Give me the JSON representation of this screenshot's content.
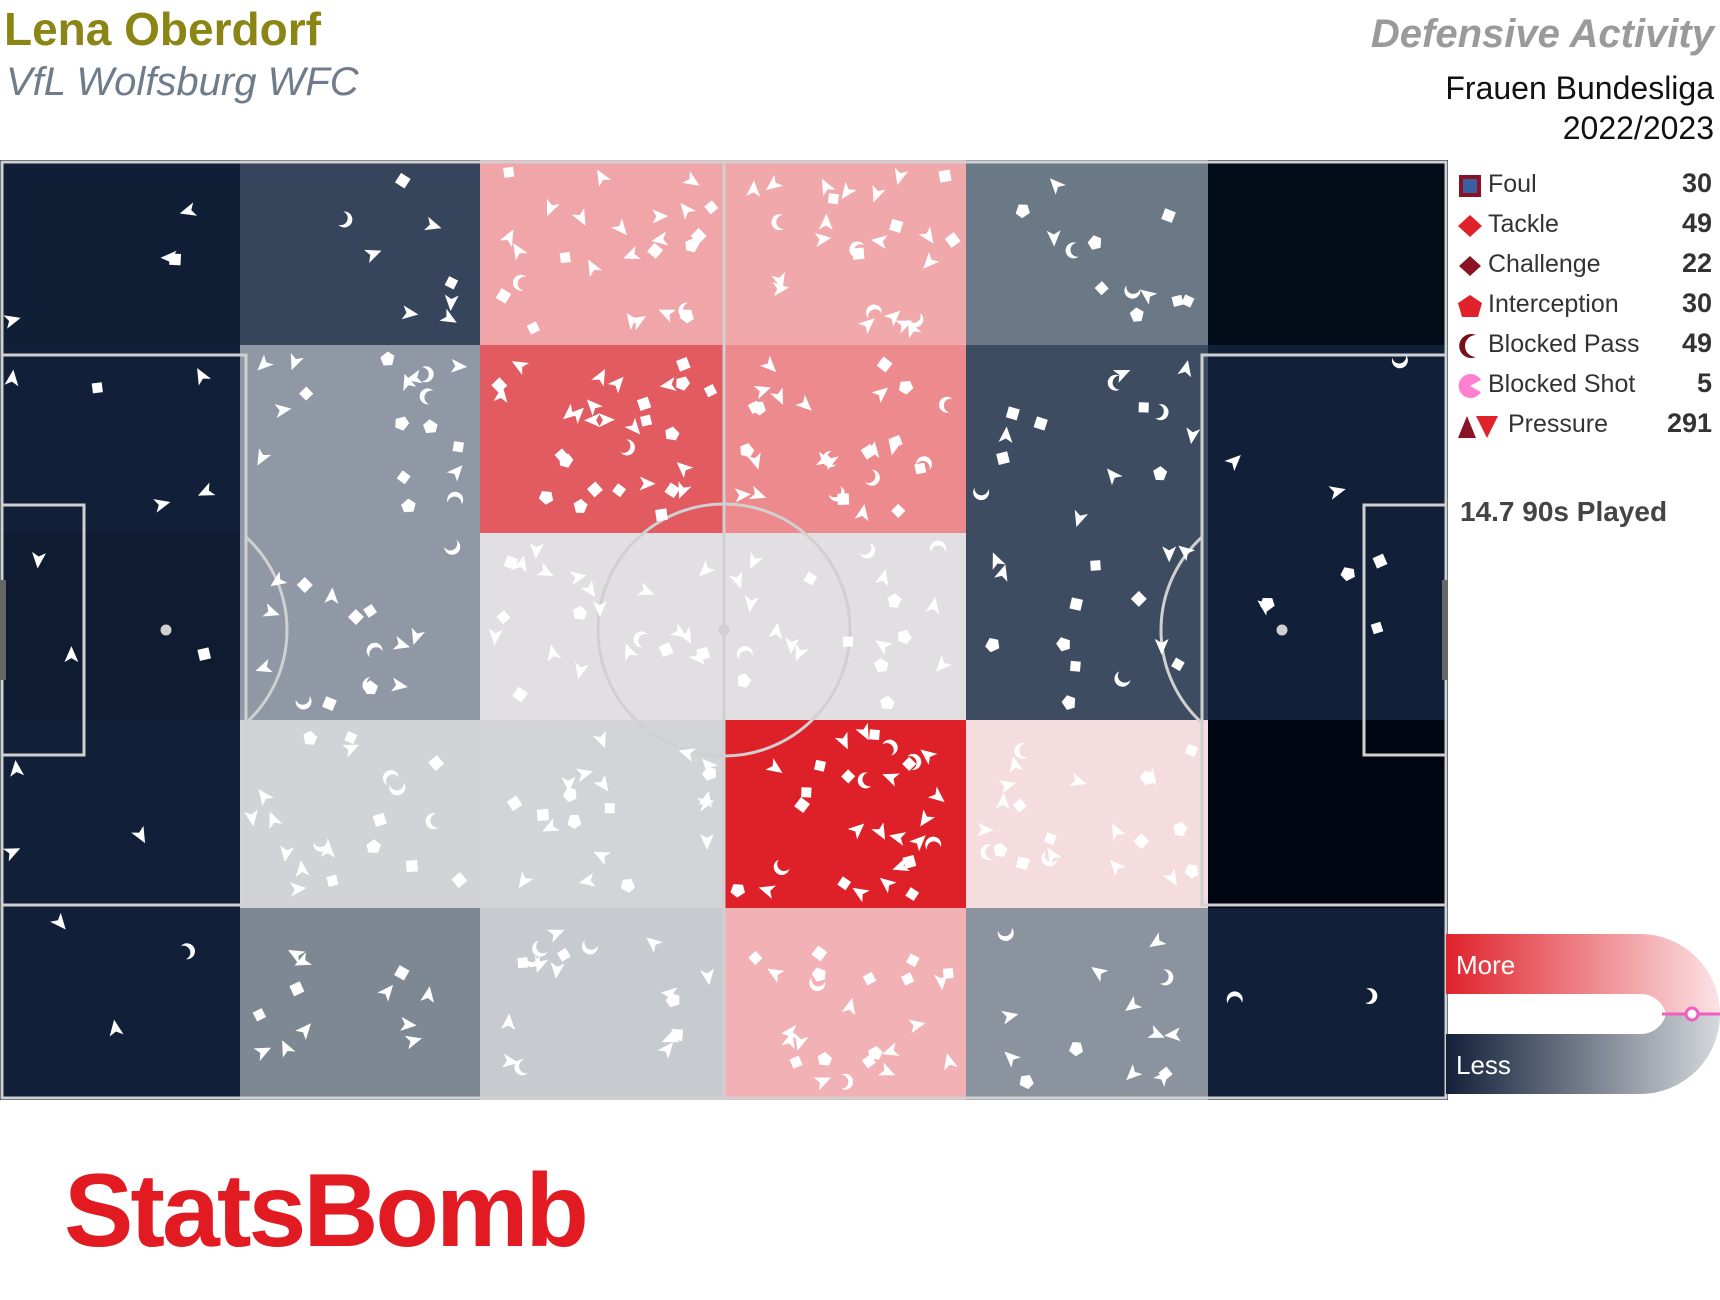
{
  "header": {
    "player_name": "Lena Oberdorf",
    "team_name": "VfL Wolfsburg WFC",
    "report_title": "Defensive Activity",
    "competition": "Frauen Bundesliga",
    "season": "2022/2023"
  },
  "legend": [
    {
      "label": "Foul",
      "count": "30",
      "icon": "square-icon"
    },
    {
      "label": "Tackle",
      "count": "49",
      "icon": "diamond-icon"
    },
    {
      "label": "Challenge",
      "count": "22",
      "icon": "diamond-icon"
    },
    {
      "label": "Interception",
      "count": "30",
      "icon": "pentagon-icon"
    },
    {
      "label": "Blocked Pass",
      "count": "49",
      "icon": "crescent-icon"
    },
    {
      "label": "Blocked Shot",
      "count": "5",
      "icon": "pacman-icon"
    },
    {
      "label": "Pressure",
      "count": "291",
      "icon": "triangle-icon"
    }
  ],
  "played": "14.7 90s Played",
  "scale": {
    "more_label": "More",
    "less_label": "Less"
  },
  "logo_text": "StatsBomb",
  "colors": {
    "high": "#de2128",
    "low": "#0a1526",
    "player_name": "#8b8515",
    "team_name": "#6e7c8c",
    "logo": "#e21b23"
  },
  "chart_data": {
    "type": "heatmap",
    "description_rows": "pitch zones, 6 columns (own goal on left to opponent goal on right) x 5 rows (top to bottom)",
    "zone_colors": [
      [
        "#111f36",
        "#36455b",
        "#f0a5a9",
        "#f1a8ab",
        "#6b7885",
        "#030c19"
      ],
      [
        "#112038",
        "#8f98a4",
        "#e15b61",
        "#ec8a8e",
        "#3e4c61",
        "#112038"
      ],
      [
        "#0e1b31",
        "#8f98a4",
        "#e1dfe1",
        "#e1dfe1",
        "#3e4c61",
        "#112038"
      ],
      [
        "#112038",
        "#d1d3d6",
        "#d2d4d8",
        "#de2128",
        "#f5dcdf",
        "#010712"
      ],
      [
        "#112038",
        "#7e8893",
        "#c7cbd0",
        "#f2b1b5",
        "#8a939e",
        "#112038"
      ]
    ],
    "events": {
      "Foul": 30,
      "Tackle": 49,
      "Challenge": 22,
      "Interception": 30,
      "Blocked Pass": 49,
      "Blocked Shot": 5,
      "Pressure": 291
    }
  }
}
